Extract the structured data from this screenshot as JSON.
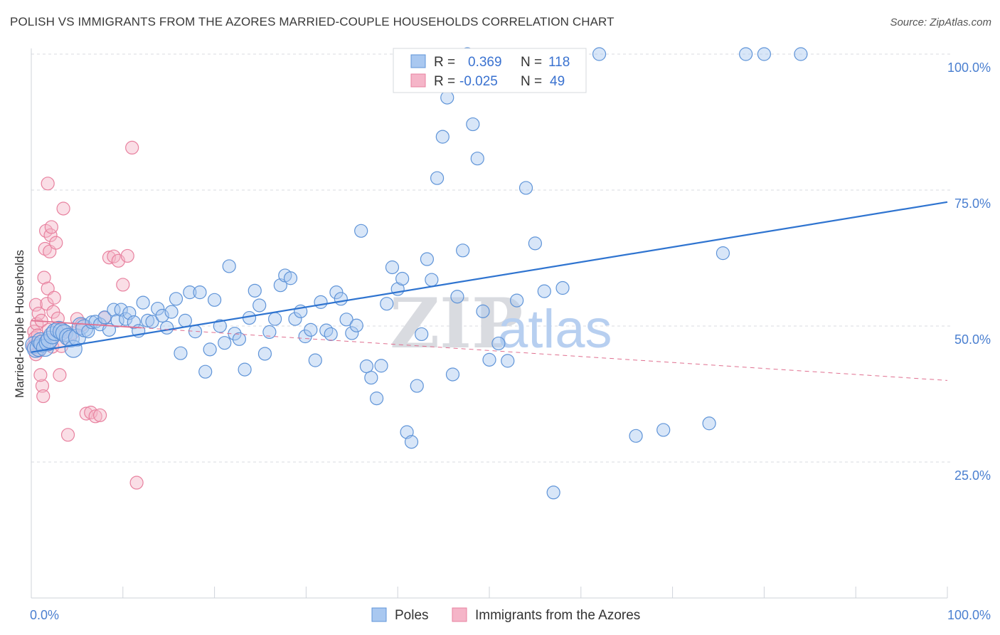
{
  "title": "POLISH VS IMMIGRANTS FROM THE AZORES MARRIED-COUPLE HOUSEHOLDS CORRELATION CHART",
  "source": "Source: ZipAtlas.com",
  "watermark": {
    "zip": "ZIP",
    "atlas": "atlas"
  },
  "colors": {
    "blue_fill": "#a9c8f0",
    "blue_stroke": "#5f94d8",
    "blue_line": "#2f74d0",
    "pink_fill": "#f5b5c8",
    "pink_stroke": "#e8819f",
    "pink_line": "#e07090",
    "grid": "#d8dbe2",
    "axis_text": "#4a7fd0"
  },
  "chart_data": {
    "type": "scatter",
    "title": "POLISH VS IMMIGRANTS FROM THE AZORES MARRIED-COUPLE HOUSEHOLDS CORRELATION CHART",
    "xlabel": "",
    "ylabel": "Married-couple Households",
    "xlim": [
      0,
      100
    ],
    "ylim": [
      0,
      105
    ],
    "x_tick_labels": [
      {
        "value": 0,
        "label": "0.0%"
      },
      {
        "value": 100,
        "label": "100.0%"
      }
    ],
    "y_tick_labels": [
      {
        "value": 25,
        "label": "25.0%"
      },
      {
        "value": 50,
        "label": "50.0%"
      },
      {
        "value": 75,
        "label": "75.0%"
      },
      {
        "value": 100,
        "label": "100.0%"
      }
    ],
    "legend_stats": [
      {
        "series": "Poles",
        "r_label": "R =",
        "r_value": "0.369",
        "n_label": "N =",
        "n_value": "118"
      },
      {
        "series": "Immigrants from the Azores",
        "r_label": "R =",
        "r_value": "-0.025",
        "n_label": "N =",
        "n_value": "49"
      }
    ],
    "series": [
      {
        "name": "Poles",
        "color": "#5f94d8",
        "trend": {
          "x": [
            0,
            100
          ],
          "y": [
            45.2,
            72.8
          ],
          "style": "solid"
        },
        "points": [
          [
            0.3,
            46.5
          ],
          [
            0.5,
            45.8
          ],
          [
            0.8,
            46.0
          ],
          [
            1.0,
            47.2
          ],
          [
            1.2,
            46.8
          ],
          [
            1.5,
            46.0
          ],
          [
            1.8,
            47.0
          ],
          [
            2.0,
            47.5
          ],
          [
            2.3,
            48.3
          ],
          [
            2.6,
            48.9
          ],
          [
            3.0,
            49.3
          ],
          [
            3.3,
            49.0
          ],
          [
            3.6,
            48.7
          ],
          [
            4.0,
            48.0
          ],
          [
            4.3,
            47.7
          ],
          [
            4.6,
            45.8
          ],
          [
            5.0,
            47.9
          ],
          [
            5.4,
            50.0
          ],
          [
            5.8,
            49.6
          ],
          [
            6.2,
            49.0
          ],
          [
            6.6,
            50.7
          ],
          [
            7.0,
            50.8
          ],
          [
            7.5,
            50.3
          ],
          [
            8.0,
            51.6
          ],
          [
            8.5,
            49.3
          ],
          [
            9.0,
            53.0
          ],
          [
            9.4,
            51.0
          ],
          [
            9.8,
            53.0
          ],
          [
            10.3,
            51.3
          ],
          [
            10.7,
            52.4
          ],
          [
            11.2,
            50.7
          ],
          [
            11.7,
            49.1
          ],
          [
            12.2,
            54.3
          ],
          [
            12.7,
            51.0
          ],
          [
            13.2,
            50.8
          ],
          [
            13.8,
            53.2
          ],
          [
            14.3,
            51.9
          ],
          [
            14.8,
            49.7
          ],
          [
            15.3,
            52.6
          ],
          [
            15.8,
            55.0
          ],
          [
            16.3,
            45.0
          ],
          [
            16.8,
            51.0
          ],
          [
            17.3,
            56.2
          ],
          [
            17.9,
            49.0
          ],
          [
            18.4,
            56.2
          ],
          [
            19.0,
            41.6
          ],
          [
            19.5,
            45.7
          ],
          [
            20.0,
            54.8
          ],
          [
            20.6,
            50.0
          ],
          [
            21.1,
            46.9
          ],
          [
            21.6,
            61.0
          ],
          [
            22.2,
            48.6
          ],
          [
            22.7,
            47.6
          ],
          [
            23.3,
            42.0
          ],
          [
            23.8,
            51.5
          ],
          [
            24.4,
            56.5
          ],
          [
            24.9,
            53.8
          ],
          [
            25.5,
            44.9
          ],
          [
            26.0,
            48.9
          ],
          [
            26.6,
            51.3
          ],
          [
            27.2,
            57.5
          ],
          [
            27.7,
            59.3
          ],
          [
            28.3,
            58.8
          ],
          [
            28.8,
            51.3
          ],
          [
            29.4,
            52.7
          ],
          [
            29.9,
            48.1
          ],
          [
            30.5,
            49.3
          ],
          [
            31.0,
            43.7
          ],
          [
            31.6,
            54.4
          ],
          [
            32.2,
            49.2
          ],
          [
            32.7,
            48.5
          ],
          [
            33.3,
            56.2
          ],
          [
            33.8,
            55.0
          ],
          [
            34.4,
            51.2
          ],
          [
            35.0,
            48.7
          ],
          [
            35.5,
            50.1
          ],
          [
            36.0,
            67.5
          ],
          [
            36.6,
            42.6
          ],
          [
            37.1,
            40.5
          ],
          [
            37.7,
            36.7
          ],
          [
            38.2,
            42.7
          ],
          [
            38.8,
            54.1
          ],
          [
            39.4,
            60.8
          ],
          [
            40.0,
            56.8
          ],
          [
            40.5,
            58.7
          ],
          [
            41.0,
            30.5
          ],
          [
            41.5,
            28.7
          ],
          [
            42.1,
            39.0
          ],
          [
            42.6,
            48.5
          ],
          [
            43.2,
            62.3
          ],
          [
            43.7,
            58.5
          ],
          [
            44.3,
            77.2
          ],
          [
            44.9,
            84.8
          ],
          [
            45.4,
            92.0
          ],
          [
            46.0,
            41.1
          ],
          [
            46.5,
            55.4
          ],
          [
            47.1,
            63.9
          ],
          [
            47.6,
            100.0
          ],
          [
            48.2,
            87.1
          ],
          [
            48.7,
            80.8
          ],
          [
            49.3,
            52.7
          ],
          [
            50.0,
            43.8
          ],
          [
            51.0,
            46.8
          ],
          [
            52.0,
            43.6
          ],
          [
            53.0,
            54.7
          ],
          [
            54.0,
            75.4
          ],
          [
            55.0,
            65.2
          ],
          [
            56.0,
            56.4
          ],
          [
            57.0,
            19.4
          ],
          [
            58.0,
            57.0
          ],
          [
            62.0,
            100.0
          ],
          [
            66.0,
            29.8
          ],
          [
            69.0,
            30.9
          ],
          [
            74.0,
            32.1
          ],
          [
            75.5,
            63.4
          ],
          [
            78.0,
            100.0
          ],
          [
            80.0,
            100.0
          ],
          [
            84.0,
            100.0
          ]
        ]
      },
      {
        "name": "Immigrants from the Azores",
        "color": "#e8819f",
        "trend": {
          "x": [
            0,
            100
          ],
          "y": [
            51.0,
            40.0
          ],
          "style": "dashed"
        },
        "points": [
          [
            0.2,
            46.3
          ],
          [
            0.3,
            49.0
          ],
          [
            0.4,
            47.8
          ],
          [
            0.5,
            53.9
          ],
          [
            0.5,
            44.8
          ],
          [
            0.6,
            50.4
          ],
          [
            0.7,
            48.3
          ],
          [
            0.8,
            52.3
          ],
          [
            0.9,
            45.5
          ],
          [
            1.0,
            47.1
          ],
          [
            1.1,
            51.0
          ],
          [
            1.2,
            39.0
          ],
          [
            1.3,
            37.1
          ],
          [
            1.4,
            58.9
          ],
          [
            1.5,
            64.2
          ],
          [
            1.6,
            67.5
          ],
          [
            1.7,
            54.1
          ],
          [
            1.8,
            56.9
          ],
          [
            1.9,
            49.3
          ],
          [
            2.0,
            63.7
          ],
          [
            2.1,
            66.7
          ],
          [
            2.2,
            68.2
          ],
          [
            2.3,
            46.2
          ],
          [
            2.4,
            52.6
          ],
          [
            2.5,
            55.2
          ],
          [
            2.7,
            65.3
          ],
          [
            2.9,
            51.4
          ],
          [
            3.1,
            41.0
          ],
          [
            3.3,
            46.3
          ],
          [
            3.5,
            71.6
          ],
          [
            3.7,
            49.0
          ],
          [
            4.0,
            30.0
          ],
          [
            1.8,
            76.2
          ],
          [
            1.0,
            41.0
          ],
          [
            4.5,
            48.7
          ],
          [
            5.0,
            51.3
          ],
          [
            5.5,
            50.2
          ],
          [
            6.0,
            33.9
          ],
          [
            6.5,
            34.1
          ],
          [
            7.0,
            33.4
          ],
          [
            7.5,
            33.6
          ],
          [
            8.0,
            51.5
          ],
          [
            8.5,
            62.6
          ],
          [
            9.0,
            62.8
          ],
          [
            9.5,
            62.0
          ],
          [
            10.0,
            57.6
          ],
          [
            10.5,
            62.9
          ],
          [
            11.0,
            82.8
          ],
          [
            11.5,
            21.2
          ]
        ]
      }
    ]
  },
  "legend": {
    "items": [
      "Poles",
      "Immigrants from the Azores"
    ]
  }
}
